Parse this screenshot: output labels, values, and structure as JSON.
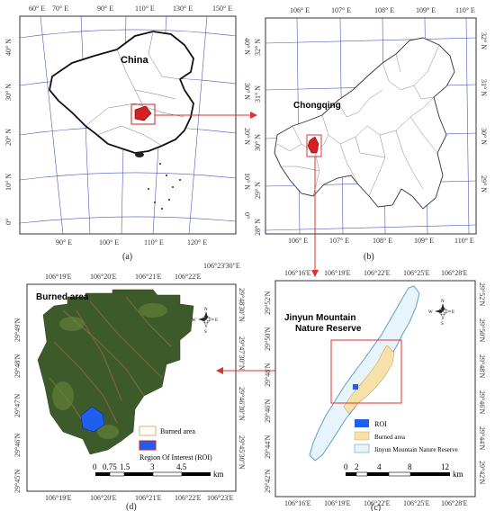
{
  "panels": {
    "a": {
      "caption": "(a)",
      "country_label": "China",
      "top_ticks": [
        "60° E",
        "70° E",
        "90° E",
        "110° E",
        "130° E",
        "150° E"
      ],
      "bottom_ticks": [
        "90° E",
        "100° E",
        "110° E",
        "120° E"
      ],
      "left_ticks": [
        "40° N",
        "30° N",
        "20° N",
        "10° N",
        "0°"
      ],
      "right_ticks": [
        "40° N",
        "30° N",
        "20° N",
        "10° N",
        "0°"
      ]
    },
    "b": {
      "caption": "(b)",
      "region_label": "Chongqing",
      "top_ticks": [
        "106° E",
        "107° E",
        "108° E",
        "109° E",
        "110° E"
      ],
      "bottom_ticks": [
        "106° E",
        "107° E",
        "108° E",
        "109° E",
        "110° E"
      ],
      "left_ticks": [
        "32° N",
        "31° N",
        "30° N",
        "29° N",
        "28° N"
      ],
      "right_ticks": [
        "32° N",
        "31° N",
        "30° N",
        "29° N"
      ]
    },
    "c": {
      "caption": "(c)",
      "title_line1": "Jinyun Mountain",
      "title_line2": "Nature Reserve",
      "top_ticks": [
        "106°16'E",
        "106°19'E",
        "106°22'E",
        "106°25'E",
        "106°28'E"
      ],
      "bottom_ticks": [
        "106°16'E",
        "106°19'E",
        "106°22'E",
        "106°25'E",
        "106°28'E"
      ],
      "left_ticks": [
        "29°52'N",
        "29°50'N",
        "29°48'N",
        "29°46'N",
        "29°44'N",
        "29°42'N"
      ],
      "right_ticks": [
        "29°52'N",
        "29°50'N",
        "29°48'N",
        "29°46'N",
        "29°44'N",
        "29°42'N"
      ],
      "legend": {
        "roi": "ROI",
        "burned": "Burned area",
        "reserve": "Jinyun Mountain Nature Reserve"
      },
      "scale_labels": [
        "0",
        "2",
        "4",
        "8",
        "12"
      ],
      "scale_unit": "km",
      "compass": {
        "n": "N",
        "s": "S",
        "e": "E",
        "w": "W"
      }
    },
    "d": {
      "caption": "(d)",
      "title": "Burned area",
      "top_ticks": [
        "106°19'E",
        "106°20'E",
        "106°21'E",
        "106°22'E",
        "106°23'30\"E"
      ],
      "bottom_ticks": [
        "106°19'E",
        "106°20'E",
        "106°21'E",
        "106°22'E",
        "106°23'E"
      ],
      "left_ticks": [
        "29°49'N",
        "29°48'N",
        "29°47'N",
        "29°46'N",
        "29°45'N"
      ],
      "right_ticks": [
        "29°48'30\"N",
        "29°47'30\"N",
        "29°46'30\"N",
        "29°45'30\"N"
      ],
      "legend": {
        "burned": "Burned area",
        "roi": "Region Of Interest (ROI)"
      },
      "scale_labels": [
        "0",
        "0.75",
        "1.5",
        "3",
        "4.5"
      ],
      "scale_unit": "km",
      "compass": {
        "n": "N",
        "s": "S",
        "e": "E",
        "w": "W"
      }
    }
  },
  "colors": {
    "highlight": "#d42020",
    "roi": "#1f5ff0",
    "burned": "#f6e2a8",
    "reserve_fill": "#e8f4fb",
    "reserve_line": "#5aa0c8",
    "arrow": "#e03030"
  }
}
